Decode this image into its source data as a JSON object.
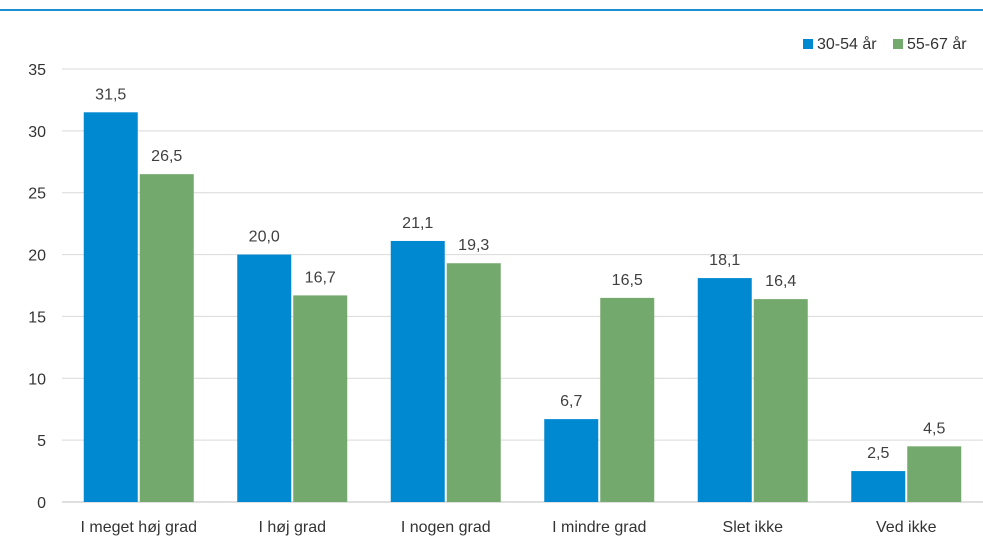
{
  "chart_data": {
    "type": "bar",
    "categories": [
      "I meget høj grad",
      "I høj grad",
      "I nogen grad",
      "I mindre grad",
      "Slet ikke",
      "Ved ikke"
    ],
    "series": [
      {
        "name": "30-54 år",
        "color": "#0089d0",
        "values": [
          31.5,
          20.0,
          21.1,
          6.7,
          18.1,
          2.5
        ],
        "labels": [
          "31,5",
          "20,0",
          "21,1",
          "6,7",
          "18,1",
          "2,5"
        ]
      },
      {
        "name": "55-67 år",
        "color": "#74a96d",
        "values": [
          26.5,
          16.7,
          19.3,
          16.5,
          16.4,
          4.5
        ],
        "labels": [
          "26,5",
          "16,7",
          "19,3",
          "16,5",
          "16,4",
          "4,5"
        ]
      }
    ],
    "yticks": [
      0,
      5,
      10,
      15,
      20,
      25,
      30,
      35
    ],
    "ylim": [
      0,
      35
    ],
    "grid": true,
    "legend": "top-right"
  },
  "colors": {
    "accent_rule": "#1b8fd2",
    "gridline": "#d9d9d9",
    "axis": "#bfbfbf"
  }
}
